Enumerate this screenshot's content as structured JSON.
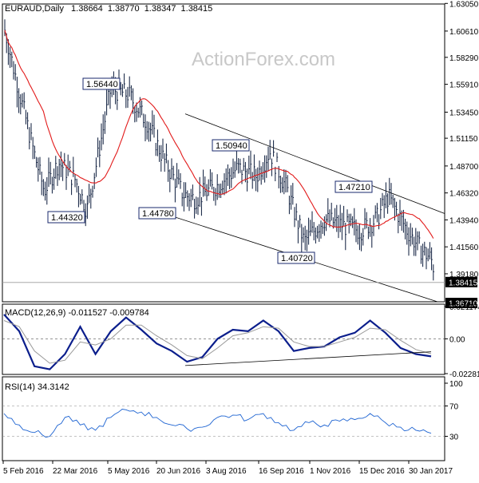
{
  "chart_data": {
    "type": "candlestick",
    "symbol": "EURAUD",
    "timeframe": "Daily",
    "header_values": [
      "1.38664",
      "1.38770",
      "1.38347",
      "1.38415"
    ],
    "watermark": "ActionForex.com",
    "x_tick_labels": [
      "5 Feb 2016",
      "22 Mar 2016",
      "5 May 2016",
      "20 Jun 2016",
      "3 Aug 2016",
      "16 Sep 2016",
      "1 Nov 2016",
      "15 Dec 2016",
      "30 Jan 2017"
    ],
    "price_panel": {
      "ylim": [
        1.3671,
        1.63
      ],
      "y_tick_labels": [
        "1.63050",
        "1.60610",
        "1.58290",
        "1.55910",
        "1.53450",
        "1.51150",
        "1.48700",
        "1.46320",
        "1.43940",
        "1.41560",
        "1.39180"
      ],
      "current_price_label": "1.38415",
      "low_price_label": "1.36710",
      "moving_average": "red line",
      "annotations": [
        {
          "label": "1.56440",
          "x": "5 May 2016",
          "y": 1.5644
        },
        {
          "label": "1.44320",
          "x": "Mar 2016",
          "y": 1.4432
        },
        {
          "label": "1.44780",
          "x": "Jun 2016",
          "y": 1.4478
        },
        {
          "label": "1.50940",
          "x": "Sep 2016",
          "y": 1.5094
        },
        {
          "label": "1.40720",
          "x": "Oct 2016",
          "y": 1.4072
        },
        {
          "label": "1.47210",
          "x": "Dec 2016",
          "y": 1.4721
        }
      ],
      "channel": "descending parallel trend lines",
      "series": [
        {
          "date": "5 Feb 2016",
          "value": 1.61
        },
        {
          "date": "15 Feb 2016",
          "value": 1.565
        },
        {
          "date": "1 Mar 2016",
          "value": 1.5
        },
        {
          "date": "10 Mar 2016",
          "value": 1.465
        },
        {
          "date": "22 Mar 2016",
          "value": 1.49
        },
        {
          "date": "5 Apr 2016",
          "value": 1.475
        },
        {
          "date": "15 Apr 2016",
          "value": 1.448
        },
        {
          "date": "25 Apr 2016",
          "value": 1.5
        },
        {
          "date": "5 May 2016",
          "value": 1.555
        },
        {
          "date": "20 May 2016",
          "value": 1.55
        },
        {
          "date": "5 Jun 2016",
          "value": 1.525
        },
        {
          "date": "20 Jun 2016",
          "value": 1.49
        },
        {
          "date": "5 Jul 2016",
          "value": 1.462
        },
        {
          "date": "15 Jul 2016",
          "value": 1.458
        },
        {
          "date": "3 Aug 2016",
          "value": 1.47
        },
        {
          "date": "20 Aug 2016",
          "value": 1.485
        },
        {
          "date": "5 Sep 2016",
          "value": 1.478
        },
        {
          "date": "16 Sep 2016",
          "value": 1.5
        },
        {
          "date": "1 Oct 2016",
          "value": 1.465
        },
        {
          "date": "15 Oct 2016",
          "value": 1.42
        },
        {
          "date": "1 Nov 2016",
          "value": 1.44
        },
        {
          "date": "15 Nov 2016",
          "value": 1.435
        },
        {
          "date": "1 Dec 2016",
          "value": 1.43
        },
        {
          "date": "15 Dec 2016",
          "value": 1.44
        },
        {
          "date": "25 Dec 2016",
          "value": 1.46
        },
        {
          "date": "10 Jan 2017",
          "value": 1.43
        },
        {
          "date": "20 Jan 2017",
          "value": 1.415
        },
        {
          "date": "30 Jan 2017",
          "value": 1.405
        },
        {
          "date": "5 Feb 2017",
          "value": 1.384
        }
      ]
    },
    "macd_panel": {
      "label": "MACD(12,26,9) -0.011527 -0.009784",
      "y_tick_labels": [
        "0.021174",
        "0.00",
        "-0.022814"
      ],
      "series": [
        {
          "name": "MACD",
          "values": [
            0.016,
            0.005,
            -0.018,
            -0.02,
            -0.01,
            0.008,
            -0.01,
            0.005,
            0.014,
            0.006,
            -0.003,
            -0.008,
            -0.015,
            -0.012,
            0.0,
            0.006,
            0.005,
            0.012,
            0.005,
            -0.008,
            -0.006,
            -0.005,
            0.001,
            0.004,
            0.012,
            0.004,
            -0.006,
            -0.01,
            -0.0115
          ]
        },
        {
          "name": "Signal",
          "values": [
            0.012,
            0.008,
            -0.008,
            -0.016,
            -0.014,
            -0.002,
            -0.004,
            0.0,
            0.009,
            0.009,
            0.002,
            -0.004,
            -0.011,
            -0.013,
            -0.006,
            0.002,
            0.004,
            0.008,
            0.007,
            -0.002,
            -0.005,
            -0.005,
            -0.002,
            0.001,
            0.007,
            0.006,
            -0.001,
            -0.007,
            -0.0098
          ]
        }
      ]
    },
    "rsi_panel": {
      "label": "RSI(14) 34.3142",
      "ylim": [
        0,
        100
      ],
      "y_tick_labels": [
        "100",
        "70",
        "30",
        "0"
      ],
      "series": [
        {
          "name": "RSI",
          "values": [
            60,
            45,
            35,
            30,
            55,
            45,
            38,
            55,
            65,
            62,
            55,
            45,
            40,
            42,
            55,
            58,
            52,
            60,
            48,
            38,
            48,
            45,
            50,
            52,
            60,
            48,
            42,
            38,
            34
          ]
        }
      ]
    }
  }
}
